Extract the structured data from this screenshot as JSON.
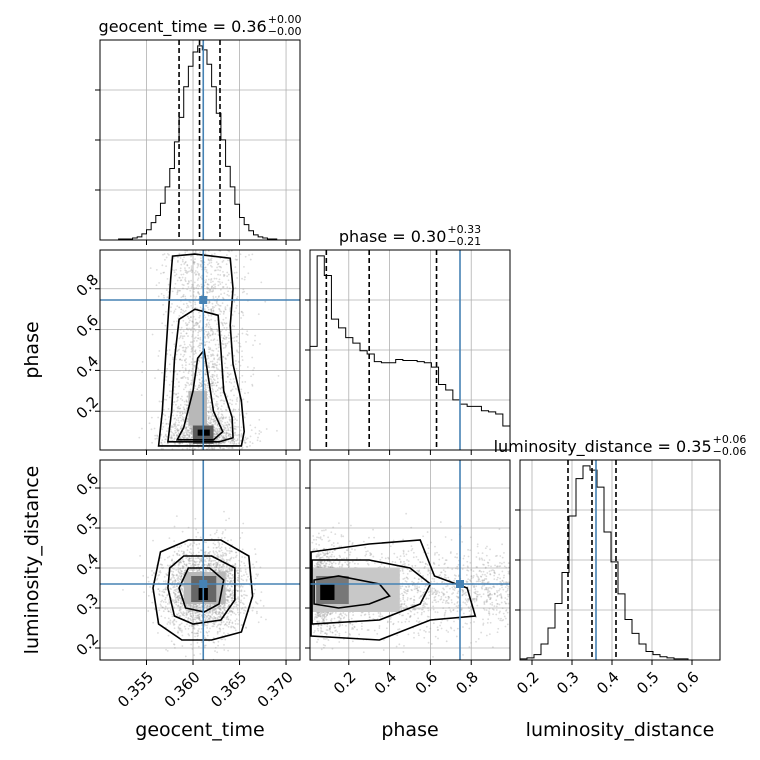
{
  "chart_data": {
    "type": "corner",
    "parameters": [
      "geocent_time",
      "phase",
      "luminosity_distance"
    ],
    "truths": {
      "geocent_time": 0.3611,
      "phase": 0.745,
      "luminosity_distance": 0.36
    },
    "truth_color": "#4682b4",
    "axes": {
      "geocent_time": {
        "range": [
          0.35,
          0.3715
        ],
        "ticks": [
          0.355,
          0.36,
          0.365,
          0.37
        ],
        "tick_labels": [
          "0.355",
          "0.360",
          "0.365",
          "0.370"
        ]
      },
      "phase": {
        "range": [
          0.01,
          0.99
        ],
        "ticks": [
          0.2,
          0.4,
          0.6,
          0.8
        ],
        "tick_labels": [
          "0.2",
          "0.4",
          "0.6",
          "0.8"
        ]
      },
      "luminosity_distance": {
        "range": [
          0.17,
          0.67
        ],
        "ticks": [
          0.2,
          0.3,
          0.4,
          0.5,
          0.6
        ],
        "tick_labels": [
          "0.2",
          "0.3",
          "0.4",
          "0.5",
          "0.6"
        ]
      }
    },
    "titles": [
      {
        "param": "geocent_time",
        "text": "geocent_time = 0.36",
        "sup": "+0.00",
        "sub": "−0.00"
      },
      {
        "param": "phase",
        "text": "phase = 0.30",
        "sup": "+0.33",
        "sub": "−0.21"
      },
      {
        "param": "luminosity_distance",
        "text": "luminosity_distance = 0.35",
        "sup": "+0.06",
        "sub": "−0.06"
      }
    ],
    "quantiles": {
      "geocent_time": [
        0.3585,
        0.3607,
        0.3629
      ],
      "phase": [
        0.09,
        0.3,
        0.63
      ],
      "luminosity_distance": [
        0.29,
        0.35,
        0.41
      ]
    },
    "histograms": {
      "geocent_time": {
        "edges": [
          0.35,
          0.3505,
          0.351,
          0.3515,
          0.352,
          0.3525,
          0.353,
          0.3535,
          0.354,
          0.3545,
          0.355,
          0.3555,
          0.356,
          0.3565,
          0.357,
          0.3575,
          0.358,
          0.3585,
          0.359,
          0.3595,
          0.36,
          0.3605,
          0.361,
          0.3615,
          0.362,
          0.3625,
          0.363,
          0.3635,
          0.364,
          0.3645,
          0.365,
          0.3655,
          0.366,
          0.3665,
          0.367,
          0.3675,
          0.368,
          0.3685,
          0.369,
          0.3695,
          0.37,
          0.3705,
          0.371,
          0.3715
        ],
        "counts": [
          0,
          0,
          0,
          0,
          1,
          1,
          1,
          2,
          3,
          6,
          10,
          17,
          24,
          36,
          52,
          70,
          96,
          120,
          150,
          170,
          184,
          190,
          186,
          172,
          150,
          124,
          98,
          72,
          52,
          35,
          22,
          15,
          9,
          5,
          3,
          2,
          1,
          1,
          0,
          0,
          0,
          0,
          0
        ]
      },
      "phase": {
        "edges": [
          0.01,
          0.045,
          0.08,
          0.115,
          0.15,
          0.185,
          0.22,
          0.255,
          0.29,
          0.325,
          0.36,
          0.395,
          0.43,
          0.465,
          0.5,
          0.535,
          0.57,
          0.605,
          0.64,
          0.675,
          0.71,
          0.745,
          0.78,
          0.815,
          0.85,
          0.885,
          0.92,
          0.955,
          0.99
        ],
        "counts": [
          95,
          178,
          160,
          120,
          112,
          103,
          98,
          91,
          88,
          81,
          80,
          80,
          83,
          82,
          82,
          81,
          80,
          76,
          60,
          55,
          46,
          42,
          40,
          40,
          36,
          35,
          33,
          22
        ]
      },
      "luminosity_distance": {
        "edges": [
          0.17,
          0.1875,
          0.205,
          0.2225,
          0.24,
          0.2575,
          0.275,
          0.2925,
          0.31,
          0.3275,
          0.345,
          0.3625,
          0.38,
          0.3975,
          0.415,
          0.4325,
          0.45,
          0.4675,
          0.485,
          0.5025,
          0.52,
          0.5375,
          0.555,
          0.5725,
          0.59,
          0.6075,
          0.625,
          0.6425,
          0.66,
          0.67
        ],
        "counts": [
          1,
          2,
          5,
          15,
          30,
          53,
          82,
          135,
          170,
          182,
          178,
          162,
          120,
          92,
          62,
          38,
          25,
          15,
          8,
          5,
          3,
          2,
          1,
          1,
          0,
          0,
          0,
          0,
          0
        ]
      }
    },
    "posterior_2d": {
      "phase_vs_geocent_time": {
        "x_mean": 0.3612,
        "x_std": 0.0022,
        "y_mode": 0.09,
        "levels": 3
      },
      "luminosity_distance_vs_geocent_time": {
        "x_mean": 0.3612,
        "x_std": 0.0022,
        "y_mean": 0.345,
        "y_std": 0.055,
        "levels": 3
      },
      "luminosity_distance_vs_phase": {
        "x_mode": 0.09,
        "y_mean": 0.345,
        "y_std": 0.055,
        "levels": 3
      }
    },
    "axis_labels": {
      "geocent_time": "geocent_time",
      "phase": "phase",
      "luminosity_distance": "luminosity_distance"
    },
    "grid": true
  }
}
